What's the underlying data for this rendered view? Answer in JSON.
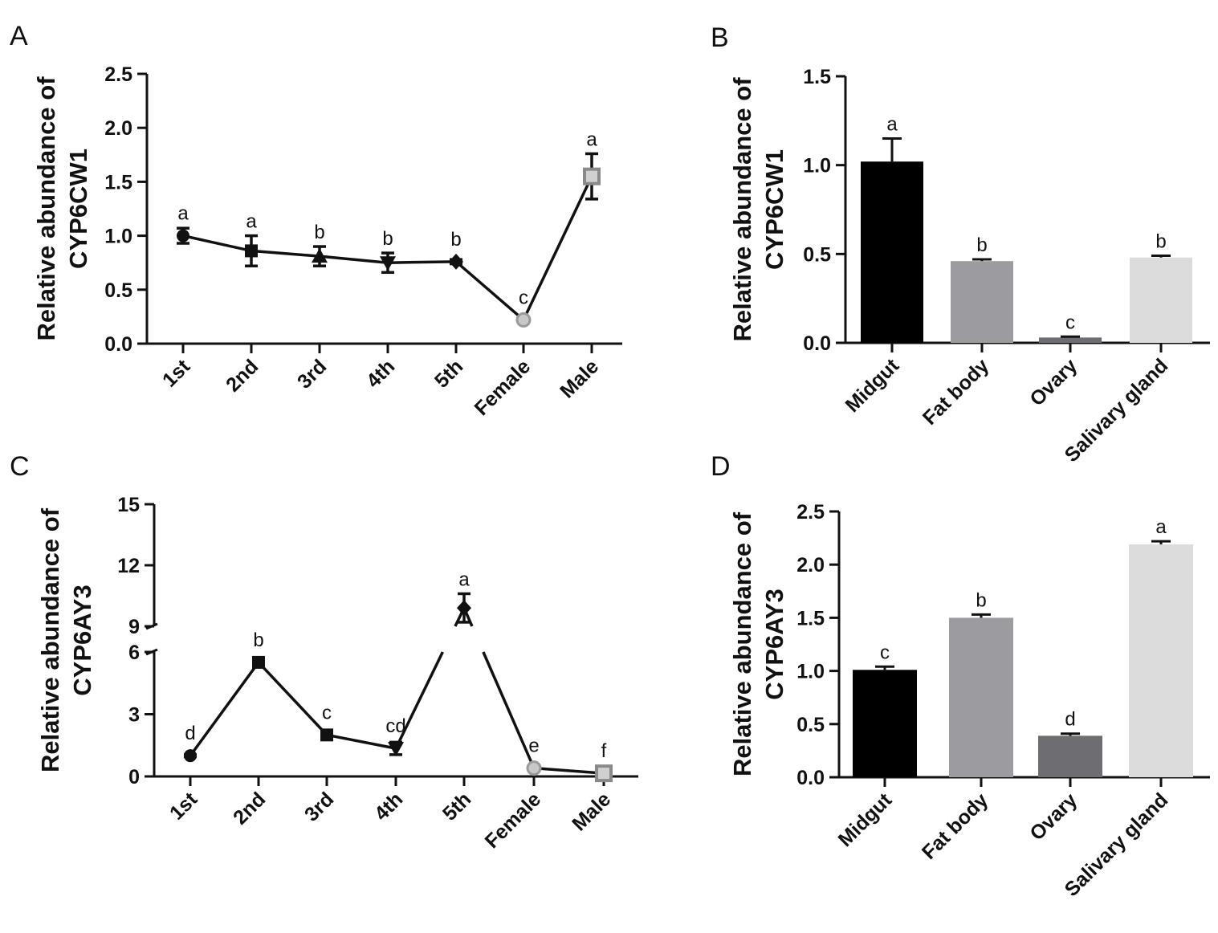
{
  "chart_data": [
    {
      "panel": "A",
      "type": "line",
      "ylabel": [
        "Relative abundance of",
        "CYP6CW1"
      ],
      "ylim": [
        0,
        2.5
      ],
      "yticks": [
        "0.0",
        "0.5",
        "1.0",
        "1.5",
        "2.0",
        "2.5"
      ],
      "yticks_values": [
        0,
        0.5,
        1.0,
        1.5,
        2.0,
        2.5
      ],
      "categories": [
        "1st",
        "2nd",
        "3rd",
        "4th",
        "5th",
        "Female",
        "Male"
      ],
      "values": [
        1.0,
        0.86,
        0.81,
        0.75,
        0.76,
        0.22,
        1.55
      ],
      "errors": [
        0.07,
        0.14,
        0.09,
        0.09,
        0.02,
        0.02,
        0.21
      ],
      "markers": [
        "circle",
        "square",
        "triangle",
        "triangle-down",
        "diamond",
        "circle-gray",
        "square-gray"
      ],
      "significance": [
        "a",
        "a",
        "b",
        "b",
        "b",
        "c",
        "a"
      ]
    },
    {
      "panel": "B",
      "type": "bar",
      "ylabel": [
        "Relative abundance of",
        "CYP6CW1"
      ],
      "ylim": [
        0,
        1.5
      ],
      "yticks": [
        "0.0",
        "0.5",
        "1.0",
        "1.5"
      ],
      "yticks_values": [
        0,
        0.5,
        1.0,
        1.5
      ],
      "categories": [
        "Midgut",
        "Fat body",
        "Ovary",
        "Salivary gland"
      ],
      "values": [
        1.02,
        0.46,
        0.03,
        0.48
      ],
      "errors": [
        0.13,
        0.01,
        0.005,
        0.01
      ],
      "colors": [
        "#000000",
        "#9b9ba0",
        "#6e6e72",
        "#dcdcdc"
      ],
      "significance": [
        "a",
        "b",
        "c",
        "b"
      ]
    },
    {
      "panel": "C",
      "type": "line",
      "ylabel": [
        "Relative abundance of",
        "CYP6AY3"
      ],
      "ylim": [
        0,
        15
      ],
      "axis_break": [
        6,
        9
      ],
      "yticks": [
        "0",
        "3",
        "6",
        "9",
        "12",
        "15"
      ],
      "yticks_values": [
        0,
        3,
        6,
        9,
        12,
        15
      ],
      "categories": [
        "1st",
        "2nd",
        "3rd",
        "4th",
        "5th",
        "Female",
        "Male"
      ],
      "values": [
        1.0,
        5.5,
        2.0,
        1.35,
        9.9,
        0.4,
        0.15
      ],
      "errors": [
        0.05,
        0.15,
        0.15,
        0.3,
        0.7,
        0.05,
        0.05
      ],
      "markers": [
        "circle",
        "square",
        "square",
        "triangle-down",
        "diamond",
        "circle-gray",
        "square-gray"
      ],
      "significance": [
        "d",
        "b",
        "c",
        "cd",
        "a",
        "e",
        "f"
      ]
    },
    {
      "panel": "D",
      "type": "bar",
      "ylabel": [
        "Relative abundance of",
        "CYP6AY3"
      ],
      "ylim": [
        0,
        2.5
      ],
      "yticks": [
        "0.0",
        "0.5",
        "1.0",
        "1.5",
        "2.0",
        "2.5"
      ],
      "yticks_values": [
        0,
        0.5,
        1.0,
        1.5,
        2.0,
        2.5
      ],
      "categories": [
        "Midgut",
        "Fat body",
        "Ovary",
        "Salivary gland"
      ],
      "values": [
        1.01,
        1.5,
        0.39,
        2.19
      ],
      "errors": [
        0.03,
        0.03,
        0.02,
        0.03
      ],
      "colors": [
        "#000000",
        "#9b9ba0",
        "#6e6e72",
        "#dcdcdc"
      ],
      "significance": [
        "c",
        "b",
        "d",
        "a"
      ]
    }
  ]
}
